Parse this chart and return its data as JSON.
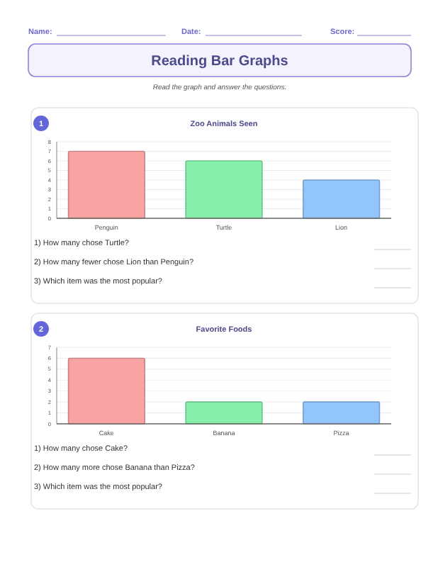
{
  "chart_data": [
    {
      "type": "other",
      "title": "Reading Bar Graphs",
      "subtitle": "Read the graph and answer the questions.",
      "annotations": [
        "Name:",
        "Date:",
        "Score:"
      ]
    },
    {
      "type": "bar",
      "title": "Zoo Animals Seen",
      "categories": [
        "Penguin",
        "Turtle",
        "Lion"
      ],
      "values": [
        7,
        6,
        4
      ],
      "colors": [
        "#f9a3a3",
        "#86efac",
        "#93c5fd"
      ],
      "ylim": [
        0,
        8
      ],
      "yticks": [
        0,
        1,
        2,
        3,
        4,
        5,
        6,
        7,
        8
      ],
      "grid": "y",
      "annotations": [
        "1",
        "1) How many chose Turtle?",
        "2) How many fewer chose Lion than Penguin?",
        "3) Which item was the most popular?"
      ]
    },
    {
      "type": "bar",
      "title": "Favorite Foods",
      "categories": [
        "Cake",
        "Banana",
        "Pizza"
      ],
      "values": [
        6,
        2,
        2
      ],
      "colors": [
        "#f9a3a3",
        "#86efac",
        "#93c5fd"
      ],
      "ylim": [
        0,
        7
      ],
      "yticks": [
        0,
        1,
        2,
        3,
        4,
        5,
        6,
        7
      ],
      "grid": "y",
      "annotations": [
        "2",
        "1) How many chose Cake?",
        "2) How many more chose Banana than Pizza?",
        "3) Which item was the most popular?"
      ]
    }
  ]
}
